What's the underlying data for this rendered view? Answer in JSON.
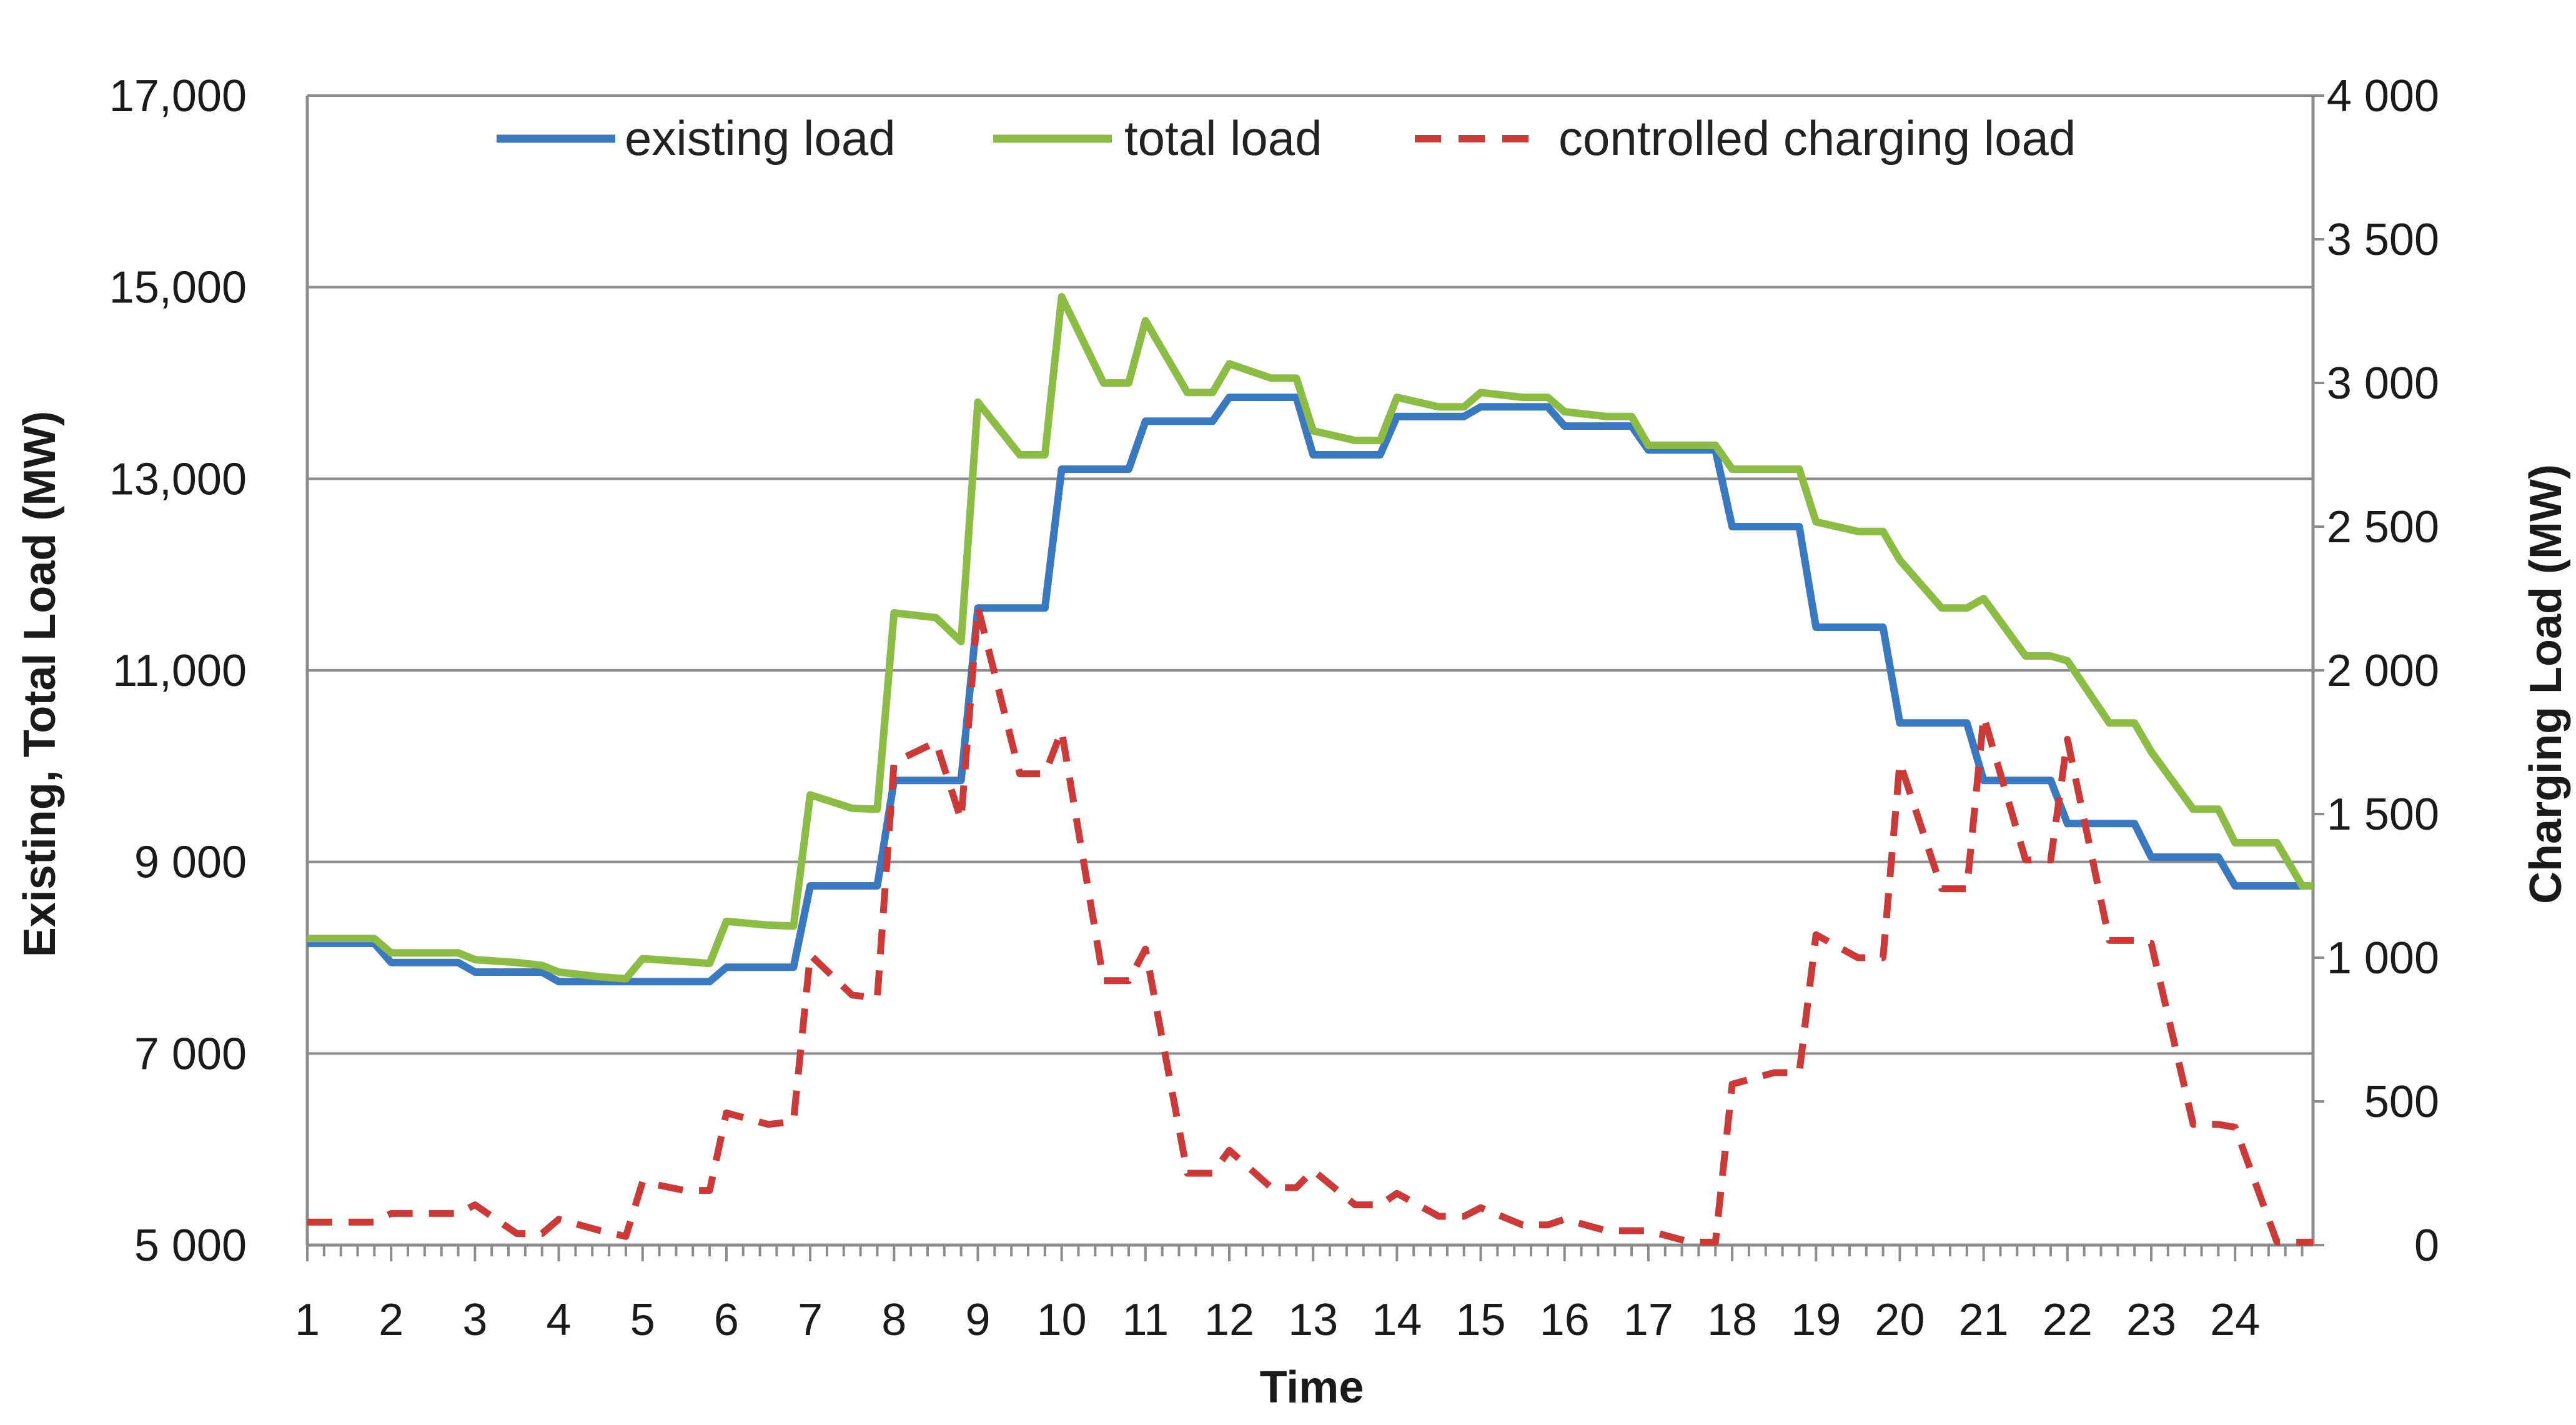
{
  "chart_data": {
    "type": "line",
    "title": "",
    "xlabel": "Time",
    "ylabel_left": "Existing, Total Load (MW)",
    "ylabel_right": "Charging Load (MW)",
    "x_tick_labels": [
      "1",
      "2",
      "3",
      "4",
      "5",
      "6",
      "7",
      "8",
      "9",
      "10",
      "11",
      "12",
      "13",
      "14",
      "15",
      "16",
      "17",
      "18",
      "19",
      "20",
      "21",
      "22",
      "23",
      "24"
    ],
    "xlim": [
      1,
      24.93
    ],
    "ylim_left": [
      5000,
      17000
    ],
    "ylim_right": [
      0,
      4000
    ],
    "left_tick_values": [
      5000,
      7000,
      9000,
      11000,
      13000,
      15000,
      17000
    ],
    "left_tick_labels": [
      "5 000",
      "7 000",
      "9 000",
      "11,000",
      "13,000",
      "15,000",
      "17,000"
    ],
    "right_tick_values": [
      0,
      500,
      1000,
      1500,
      2000,
      2500,
      3000,
      3500,
      4000
    ],
    "right_tick_labels": [
      "0",
      "500",
      "1 000",
      "1 500",
      "2 000",
      "2 500",
      "3 000",
      "3 500",
      "4 000"
    ],
    "grid": true,
    "legend_position": "top",
    "series": [
      {
        "name": "existing load",
        "axis": "left",
        "color": "#3a78c0",
        "style": "solid",
        "x": [
          1.0,
          1.8,
          2.0,
          2.8,
          3.0,
          3.8,
          4.0,
          4.8,
          5.0,
          5.8,
          6.0,
          6.8,
          7.0,
          7.8,
          8.0,
          8.8,
          9.0,
          9.8,
          10.0,
          10.8,
          11.0,
          11.8,
          12.0,
          12.8,
          13.0,
          13.8,
          14.0,
          14.8,
          15.0,
          15.8,
          16.0,
          16.8,
          17.0,
          17.8,
          18.0,
          18.8,
          19.0,
          19.8,
          20.0,
          20.8,
          21.0,
          21.8,
          22.0,
          22.8,
          23.0,
          23.8,
          24.0,
          24.8
        ],
        "values": [
          8150,
          8150,
          7950,
          7950,
          7850,
          7850,
          7750,
          7750,
          7750,
          7750,
          7900,
          7900,
          8750,
          8750,
          9850,
          9850,
          11650,
          11650,
          13100,
          13100,
          13600,
          13600,
          13850,
          13850,
          13250,
          13250,
          13650,
          13650,
          13750,
          13750,
          13550,
          13550,
          13300,
          13300,
          12500,
          12500,
          11450,
          11450,
          10450,
          10450,
          9850,
          9850,
          9400,
          9400,
          9050,
          9050,
          8750,
          8750
        ]
      },
      {
        "name": "total load",
        "axis": "left",
        "color": "#8cbc45",
        "style": "solid",
        "x": [
          1.0,
          1.8,
          2.0,
          2.8,
          3.0,
          3.5,
          3.8,
          4.0,
          4.5,
          4.8,
          5.0,
          5.5,
          5.8,
          6.0,
          6.5,
          6.8,
          7.0,
          7.5,
          7.8,
          8.0,
          8.5,
          8.8,
          9.0,
          9.5,
          9.8,
          10.0,
          10.5,
          10.8,
          11.0,
          11.5,
          11.8,
          12.0,
          12.5,
          12.8,
          13.0,
          13.5,
          13.8,
          14.0,
          14.5,
          14.8,
          15.0,
          15.5,
          15.8,
          16.0,
          16.5,
          16.8,
          17.0,
          17.5,
          17.8,
          18.0,
          18.5,
          18.8,
          19.0,
          19.5,
          19.8,
          20.0,
          20.5,
          20.8,
          21.0,
          21.5,
          21.8,
          22.0,
          22.5,
          22.8,
          23.0,
          23.5,
          23.8,
          24.0,
          24.5,
          24.8,
          24.93
        ],
        "values": [
          8200,
          8200,
          8050,
          8050,
          7980,
          7950,
          7920,
          7850,
          7800,
          7780,
          7990,
          7960,
          7940,
          8380,
          8340,
          8330,
          9700,
          9560,
          9550,
          11600,
          11550,
          11300,
          13800,
          13250,
          13250,
          14900,
          14000,
          14000,
          14650,
          13900,
          13900,
          14200,
          14050,
          14050,
          13500,
          13400,
          13400,
          13850,
          13750,
          13750,
          13900,
          13850,
          13850,
          13700,
          13650,
          13650,
          13350,
          13350,
          13350,
          13100,
          13100,
          13100,
          12550,
          12450,
          12450,
          12150,
          11650,
          11650,
          11750,
          11150,
          11150,
          11100,
          10450,
          10450,
          10150,
          9550,
          9550,
          9200,
          9200,
          8750,
          8750
        ]
      },
      {
        "name": "controlled charging load",
        "axis": "right",
        "color": "#c93a38",
        "style": "dashed",
        "x": [
          1.0,
          1.8,
          2.0,
          2.8,
          3.0,
          3.5,
          3.8,
          4.0,
          4.5,
          4.8,
          5.0,
          5.5,
          5.8,
          6.0,
          6.5,
          6.8,
          7.0,
          7.5,
          7.8,
          8.0,
          8.5,
          8.8,
          9.0,
          9.5,
          9.8,
          10.0,
          10.5,
          10.8,
          11.0,
          11.5,
          11.8,
          12.0,
          12.5,
          12.8,
          13.0,
          13.5,
          13.8,
          14.0,
          14.5,
          14.8,
          15.0,
          15.5,
          15.8,
          16.0,
          16.5,
          16.8,
          17.0,
          17.5,
          17.8,
          18.0,
          18.5,
          18.8,
          19.0,
          19.5,
          19.8,
          20.0,
          20.5,
          20.8,
          21.0,
          21.5,
          21.8,
          22.0,
          22.5,
          22.8,
          23.0,
          23.5,
          23.8,
          24.0,
          24.5,
          24.8,
          24.93
        ],
        "values": [
          80,
          80,
          110,
          110,
          140,
          40,
          40,
          90,
          50,
          30,
          220,
          190,
          190,
          460,
          420,
          430,
          1010,
          870,
          860,
          1680,
          1750,
          1480,
          2220,
          1640,
          1640,
          1790,
          920,
          920,
          1030,
          250,
          250,
          330,
          200,
          200,
          260,
          140,
          140,
          180,
          100,
          100,
          130,
          70,
          70,
          90,
          50,
          50,
          50,
          10,
          10,
          560,
          600,
          600,
          1080,
          1000,
          1000,
          1680,
          1240,
          1240,
          1840,
          1340,
          1340,
          1760,
          1060,
          1060,
          1050,
          420,
          420,
          410,
          10,
          10,
          10
        ]
      }
    ]
  }
}
